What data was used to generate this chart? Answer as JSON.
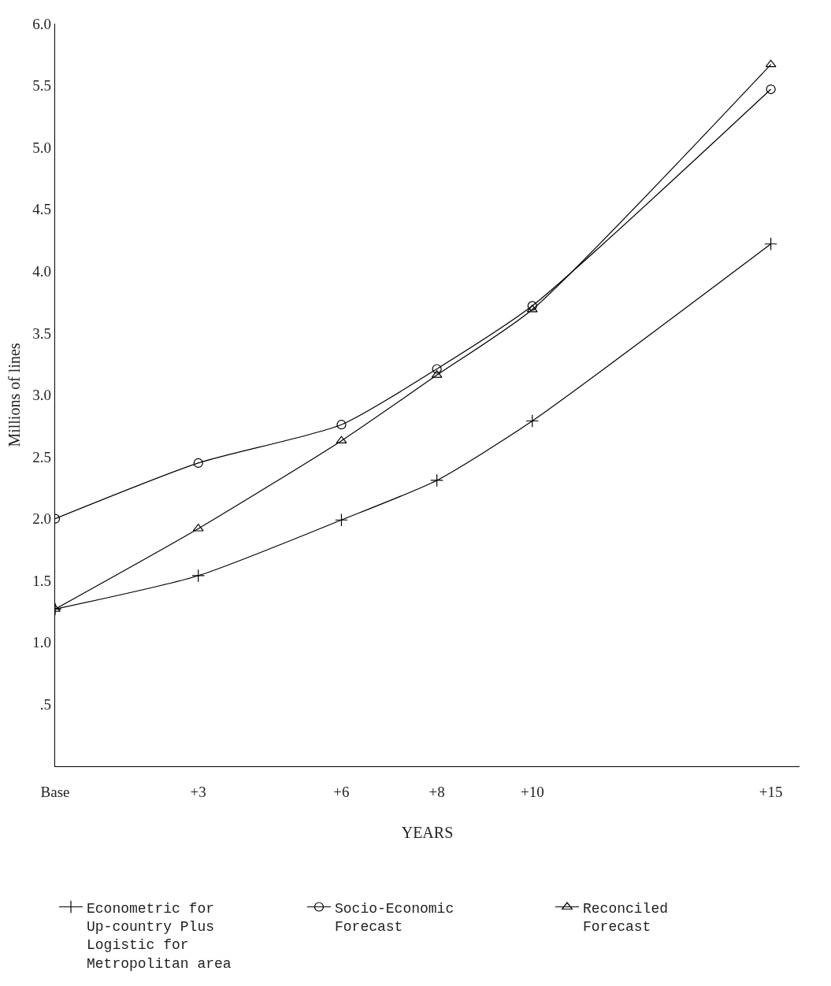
{
  "chart_data": {
    "type": "line",
    "xlabel": "YEARS",
    "ylabel": "Millions of lines",
    "x": [
      0,
      3,
      6,
      8,
      10,
      15
    ],
    "series": [
      {
        "name": "Econometric for Up-country Plus Logistic for Metropolitan area",
        "color": "#000000",
        "marker": "cross",
        "values": [
          1.27,
          1.54,
          1.99,
          2.31,
          2.79,
          4.22
        ]
      },
      {
        "name": "Socio-Economic Forecast",
        "color": "#000000",
        "marker": "circle",
        "values": [
          2.0,
          2.45,
          2.76,
          3.21,
          3.72,
          5.47
        ]
      },
      {
        "name": "Reconciled Forecast",
        "color": "#000000",
        "marker": "triangle",
        "values": [
          1.27,
          1.92,
          2.63,
          3.16,
          3.69,
          5.67
        ]
      }
    ],
    "xlim": [
      0,
      15.6
    ],
    "xticks": [
      {
        "value": 0,
        "label": "Base"
      },
      {
        "value": 3,
        "label": "+3"
      },
      {
        "value": 6,
        "label": "+6"
      },
      {
        "value": 8,
        "label": "+8"
      },
      {
        "value": 10,
        "label": "+10"
      },
      {
        "value": 15,
        "label": "+15"
      }
    ],
    "ylim": [
      0,
      6
    ],
    "yticks": [
      {
        "value": 0.5,
        "label": ".5"
      },
      {
        "value": 1,
        "label": "1.0"
      },
      {
        "value": 1.5,
        "label": "1.5"
      },
      {
        "value": 2,
        "label": "2.0"
      },
      {
        "value": 2.5,
        "label": "2.5"
      },
      {
        "value": 3,
        "label": "3.0"
      },
      {
        "value": 3.5,
        "label": "3.5"
      },
      {
        "value": 4,
        "label": "4.0"
      },
      {
        "value": 4.5,
        "label": "4.5"
      },
      {
        "value": 5,
        "label": "5.0"
      },
      {
        "value": 5.5,
        "label": "5.5"
      },
      {
        "value": 6,
        "label": "6.0"
      }
    ],
    "legend": "bottom",
    "line_style": "solid"
  }
}
